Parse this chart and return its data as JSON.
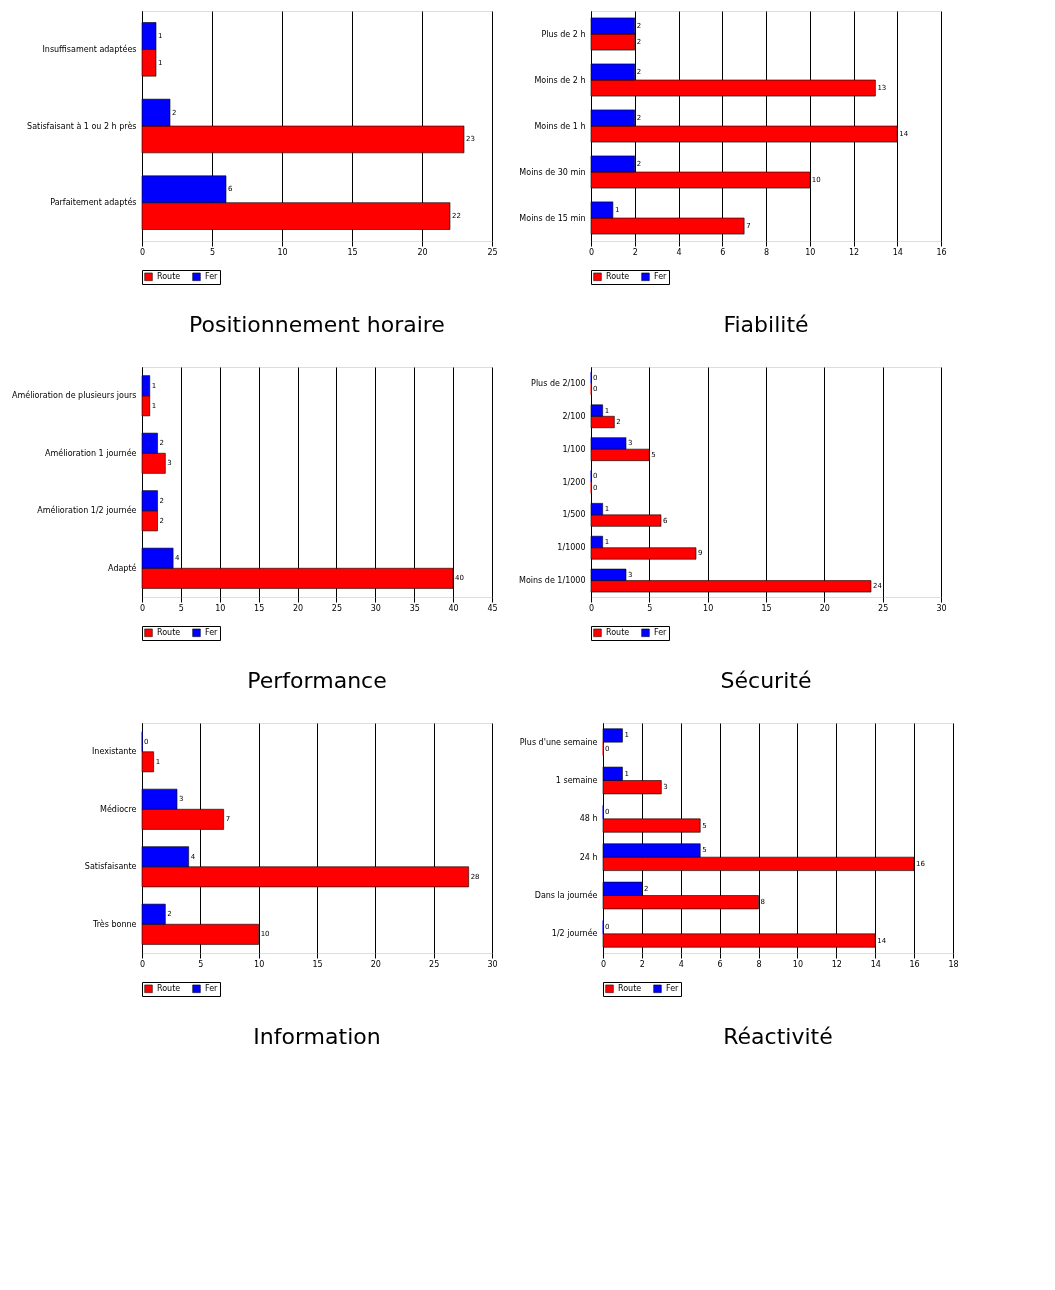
{
  "chart_data": [
    {
      "type": "bar",
      "orientation": "horizontal",
      "title": "Positionnement horaire",
      "categories": [
        "Insuffisament adaptées",
        "Satisfaisant à 1 ou 2 h près",
        "Parfaitement adaptés"
      ],
      "series": [
        {
          "name": "Route",
          "color": "#ff0000",
          "values": [
            1,
            23,
            22
          ]
        },
        {
          "name": "Fer",
          "color": "#0000ff",
          "values": [
            1,
            2,
            6
          ]
        }
      ],
      "xlim": [
        0,
        25
      ],
      "xticks": [
        0,
        5,
        10,
        15,
        20,
        25
      ],
      "grid": "x",
      "legend": "bottom",
      "data_labels": true
    },
    {
      "type": "bar",
      "orientation": "horizontal",
      "title": "Fiabilité",
      "categories": [
        "Plus de 2 h",
        "Moins de 2 h",
        "Moins de 1 h",
        "Moins de 30 min",
        "Moins de 15 min"
      ],
      "series": [
        {
          "name": "Route",
          "color": "#ff0000",
          "values": [
            2,
            13,
            14,
            10,
            7
          ]
        },
        {
          "name": "Fer",
          "color": "#0000ff",
          "values": [
            2,
            2,
            2,
            2,
            1
          ]
        }
      ],
      "xlim": [
        0,
        16
      ],
      "xticks": [
        0,
        2,
        4,
        6,
        8,
        10,
        12,
        14,
        16
      ],
      "grid": "x",
      "legend": "bottom",
      "data_labels": true
    },
    {
      "type": "bar",
      "orientation": "horizontal",
      "title": "Performance",
      "categories": [
        "Amélioration de plusieurs jours",
        "Amélioration 1 journée",
        "Amélioration 1/2 journée",
        "Adapté"
      ],
      "series": [
        {
          "name": "Route",
          "color": "#ff0000",
          "values": [
            1,
            3,
            2,
            40
          ]
        },
        {
          "name": "Fer",
          "color": "#0000ff",
          "values": [
            1,
            2,
            2,
            4
          ]
        }
      ],
      "xlim": [
        0,
        45
      ],
      "xticks": [
        0,
        5,
        10,
        15,
        20,
        25,
        30,
        35,
        40,
        45
      ],
      "grid": "x",
      "legend": "bottom",
      "data_labels": true
    },
    {
      "type": "bar",
      "orientation": "horizontal",
      "title": "Sécurité",
      "categories": [
        "Plus de 2/100",
        "2/100",
        "1/100",
        "1/200",
        "1/500",
        "1/1000",
        "Moins de 1/1000"
      ],
      "series": [
        {
          "name": "Route",
          "color": "#ff0000",
          "values": [
            0,
            2,
            5,
            0,
            6,
            9,
            24
          ]
        },
        {
          "name": "Fer",
          "color": "#0000ff",
          "values": [
            0,
            1,
            3,
            0,
            1,
            1,
            3
          ]
        }
      ],
      "xlim": [
        0,
        30
      ],
      "xticks": [
        0,
        5,
        10,
        15,
        20,
        25,
        30
      ],
      "grid": "x",
      "legend": "bottom",
      "data_labels": true
    },
    {
      "type": "bar",
      "orientation": "horizontal",
      "title": "Information",
      "categories": [
        "Inexistante",
        "Médiocre",
        "Satisfaisante",
        "Très bonne"
      ],
      "series": [
        {
          "name": "Route",
          "color": "#ff0000",
          "values": [
            1,
            7,
            28,
            10
          ]
        },
        {
          "name": "Fer",
          "color": "#0000ff",
          "values": [
            0,
            3,
            4,
            2
          ]
        }
      ],
      "xlim": [
        0,
        30
      ],
      "xticks": [
        0,
        5,
        10,
        15,
        20,
        25,
        30
      ],
      "grid": "x",
      "legend": "bottom",
      "data_labels": true
    },
    {
      "type": "bar",
      "orientation": "horizontal",
      "title": "Réactivité",
      "categories": [
        "Plus d'une semaine",
        "1 semaine",
        "48 h",
        "24 h",
        "Dans la journée",
        "1/2 journée"
      ],
      "series": [
        {
          "name": "Route",
          "color": "#ff0000",
          "values": [
            0,
            3,
            5,
            16,
            8,
            14
          ]
        },
        {
          "name": "Fer",
          "color": "#0000ff",
          "values": [
            1,
            1,
            0,
            5,
            2,
            0
          ]
        }
      ],
      "xlim": [
        0,
        18
      ],
      "xticks": [
        0,
        2,
        4,
        6,
        8,
        10,
        12,
        14,
        16,
        18
      ],
      "grid": "x",
      "legend": "bottom",
      "data_labels": true
    }
  ]
}
